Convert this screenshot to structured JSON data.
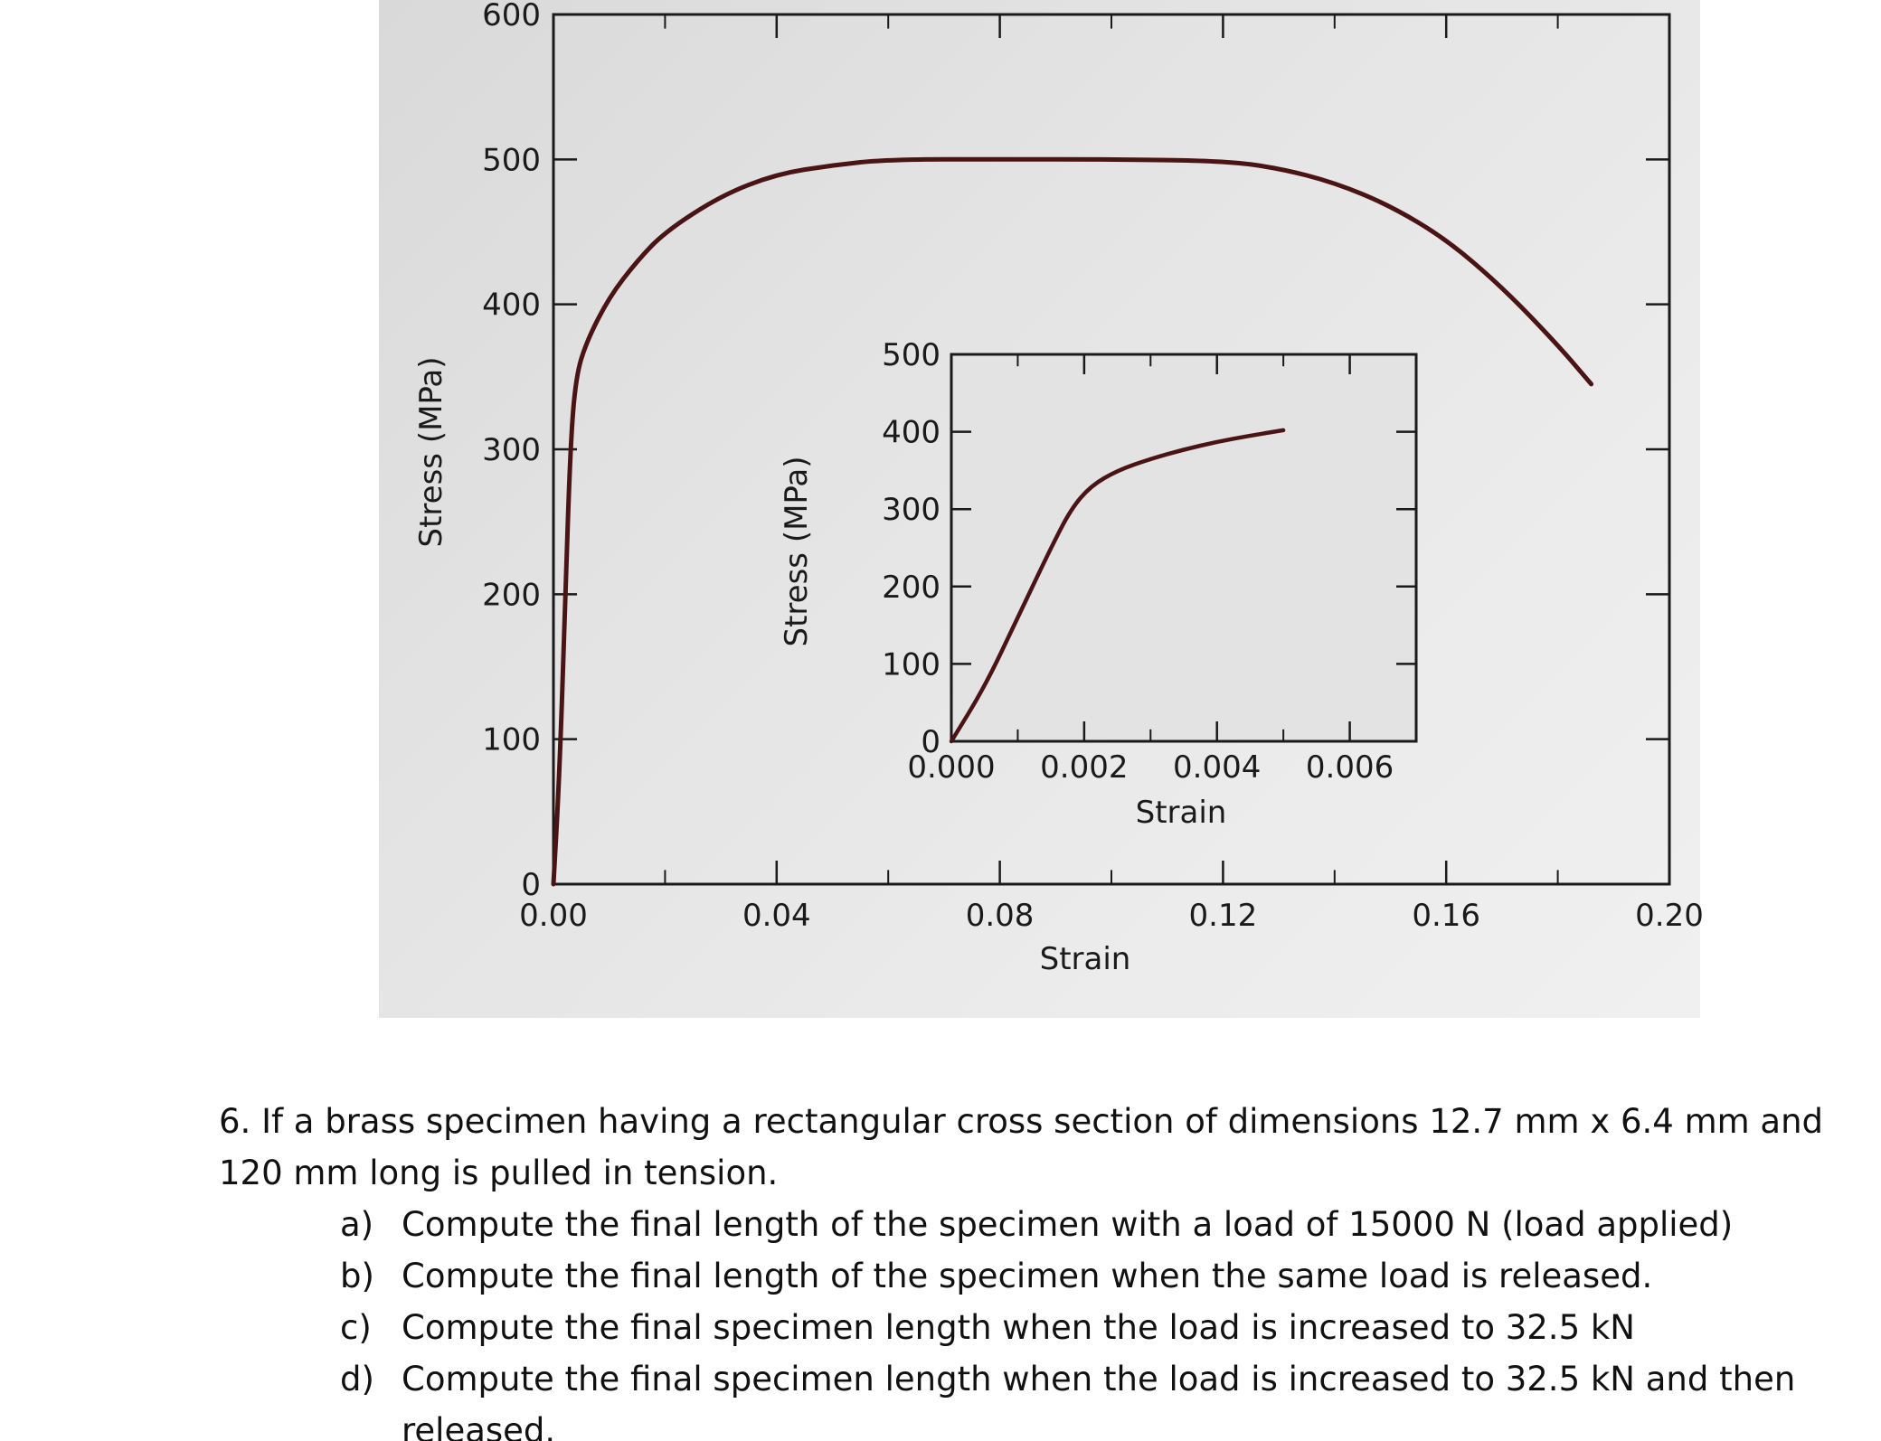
{
  "chart_data": [
    {
      "type": "line",
      "title": "",
      "xlabel": "Strain",
      "ylabel": "Stress (MPa)",
      "xlim": [
        0,
        0.2
      ],
      "ylim": [
        0,
        600
      ],
      "x_ticks": [
        "0.00",
        "0.04",
        "0.08",
        "0.12",
        "0.16",
        "0.20"
      ],
      "y_ticks": [
        "0",
        "100",
        "200",
        "300",
        "400",
        "500",
        "600"
      ],
      "grid": false,
      "series": [
        {
          "x": [
            0.0,
            0.001,
            0.002,
            0.003,
            0.004,
            0.006,
            0.01,
            0.015,
            0.02,
            0.03,
            0.04,
            0.05,
            0.06,
            0.08,
            0.1,
            0.12,
            0.13,
            0.14,
            0.15,
            0.16,
            0.17,
            0.18,
            0.186
          ],
          "values": [
            0,
            70,
            180,
            300,
            350,
            375,
            405,
            430,
            450,
            475,
            490,
            496,
            500,
            500,
            500,
            499,
            494,
            484,
            468,
            445,
            412,
            372,
            345
          ]
        }
      ]
    },
    {
      "type": "line",
      "title": "",
      "xlabel": "Strain",
      "ylabel": "Stress (MPa)",
      "xlim": [
        0,
        0.007
      ],
      "ylim": [
        0,
        500
      ],
      "x_ticks": [
        "0.000",
        "0.002",
        "0.004",
        "0.006"
      ],
      "y_ticks": [
        "0",
        "100",
        "200",
        "300",
        "400",
        "500"
      ],
      "grid": false,
      "series": [
        {
          "x": [
            0.0,
            0.0005,
            0.001,
            0.0015,
            0.0018,
            0.0021,
            0.0025,
            0.003,
            0.0035,
            0.004,
            0.0045,
            0.005
          ],
          "values": [
            0,
            70,
            160,
            250,
            300,
            330,
            350,
            365,
            377,
            387,
            395,
            402
          ]
        }
      ]
    }
  ],
  "problem": {
    "intro": "6. If a brass specimen having a rectangular cross section of dimensions 12.7 mm x 6.4 mm and 120 mm long is pulled in tension.",
    "items": [
      {
        "letter": "a)",
        "text": "Compute the final length of the specimen with a load of 15000 N (load applied)"
      },
      {
        "letter": "b)",
        "text": "Compute the final length of the specimen when the same load is released."
      },
      {
        "letter": "c)",
        "text": "Compute the final specimen length when the load is increased to 32.5 kN"
      },
      {
        "letter": "d)",
        "text": "Compute the final specimen length when the load is increased to 32.5 kN and then released."
      }
    ]
  },
  "colors": {
    "curve": "#4a1414",
    "axes": "#1a1a1a",
    "photo_background": "#e3e3e3"
  }
}
